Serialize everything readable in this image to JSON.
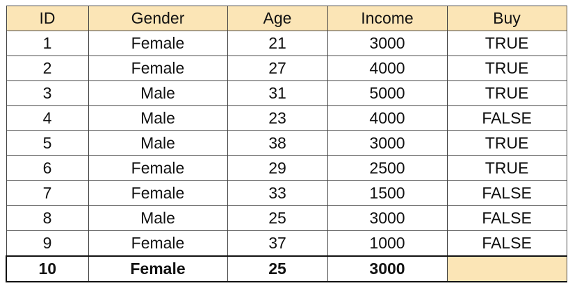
{
  "table": {
    "headers": [
      "ID",
      "Gender",
      "Age",
      "Income",
      "Buy"
    ],
    "rows": [
      [
        "1",
        "Female",
        "21",
        "3000",
        "TRUE"
      ],
      [
        "2",
        "Female",
        "27",
        "4000",
        "TRUE"
      ],
      [
        "3",
        "Male",
        "31",
        "5000",
        "TRUE"
      ],
      [
        "4",
        "Male",
        "23",
        "4000",
        "FALSE"
      ],
      [
        "5",
        "Male",
        "38",
        "3000",
        "TRUE"
      ],
      [
        "6",
        "Female",
        "29",
        "2500",
        "TRUE"
      ],
      [
        "7",
        "Female",
        "33",
        "1500",
        "FALSE"
      ],
      [
        "8",
        "Male",
        "25",
        "3000",
        "FALSE"
      ],
      [
        "9",
        "Female",
        "37",
        "1000",
        "FALSE"
      ]
    ],
    "query_row": [
      "10",
      "Female",
      "25",
      "3000",
      ""
    ]
  },
  "colors": {
    "header_fill": "#fbe5b6",
    "border": "#444444"
  }
}
